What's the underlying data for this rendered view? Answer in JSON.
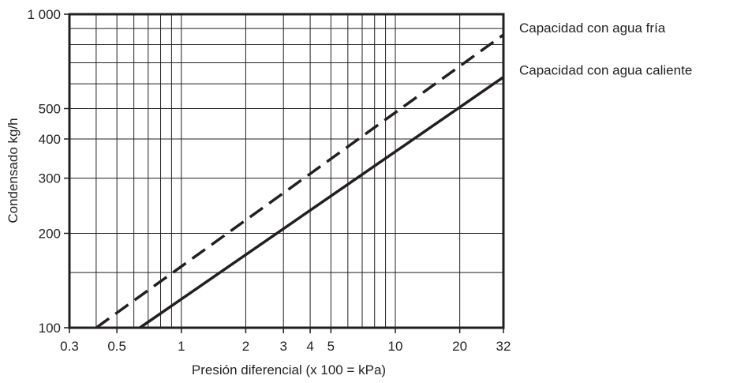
{
  "chart_data": {
    "type": "line",
    "title": "",
    "xlabel": "Presión diferencial (x 100 = kPa)",
    "ylabel": "Condensado kg/h",
    "x_scale": "log",
    "y_scale": "log",
    "xlim": [
      0.3,
      32
    ],
    "ylim": [
      100,
      1000
    ],
    "grid": true,
    "x_tick_labels": [
      {
        "value": 0.3,
        "label": "0.3"
      },
      {
        "value": 0.5,
        "label": "0.5"
      },
      {
        "value": 1,
        "label": "1"
      },
      {
        "value": 2,
        "label": "2"
      },
      {
        "value": 3,
        "label": "3"
      },
      {
        "value": 4,
        "label": "4"
      },
      {
        "value": 5,
        "label": "5"
      },
      {
        "value": 10,
        "label": "10"
      },
      {
        "value": 20,
        "label": "20"
      },
      {
        "value": 32,
        "label": "32"
      }
    ],
    "x_gridlines": [
      0.4,
      0.5,
      0.6,
      0.7,
      0.8,
      0.9,
      1,
      2,
      3,
      4,
      5,
      6,
      7,
      8,
      9,
      10,
      20
    ],
    "y_tick_labels": [
      {
        "value": 100,
        "label": "100"
      },
      {
        "value": 200,
        "label": "200"
      },
      {
        "value": 300,
        "label": "300"
      },
      {
        "value": 400,
        "label": "400"
      },
      {
        "value": 500,
        "label": "500"
      },
      {
        "value": 1000,
        "label": "1 000"
      }
    ],
    "y_gridlines": [
      150,
      200,
      300,
      400,
      500,
      600,
      700,
      800,
      900
    ],
    "series": [
      {
        "name": "Capacidad con agua fría",
        "style": "dashed",
        "color": "#231f20",
        "x": [
          0.4,
          32
        ],
        "y": [
          100,
          860
        ]
      },
      {
        "name": "Capacidad con agua caliente",
        "style": "solid",
        "color": "#231f20",
        "x": [
          0.64,
          32
        ],
        "y": [
          100,
          630
        ]
      }
    ]
  }
}
